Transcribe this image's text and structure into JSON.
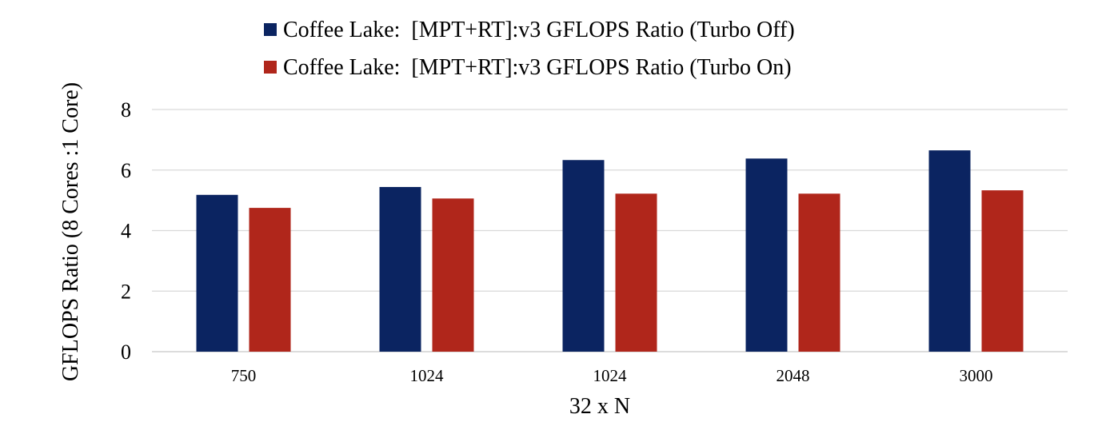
{
  "chart_data": {
    "type": "bar",
    "categories": [
      "750",
      "1024",
      "1024",
      "2048",
      "3000"
    ],
    "series": [
      {
        "name": "Coffee Lake:  [MPT+RT]:v3 GFLOPS Ratio (Turbo Off)",
        "color": "#0b2461",
        "values": [
          5.18,
          5.44,
          6.33,
          6.38,
          6.65
        ]
      },
      {
        "name": "Coffee Lake:  [MPT+RT]:v3 GFLOPS Ratio (Turbo On)",
        "color": "#b0261b",
        "values": [
          4.75,
          5.06,
          5.22,
          5.22,
          5.33
        ]
      }
    ],
    "xlabel": "32 x N",
    "ylabel": "GFLOPS Ratio (8 Cores :1 Core)",
    "ylim": [
      0,
      8
    ],
    "yticks": [
      "0",
      "2",
      "4",
      "6",
      "8"
    ],
    "grid": true,
    "legend": "top-center"
  }
}
